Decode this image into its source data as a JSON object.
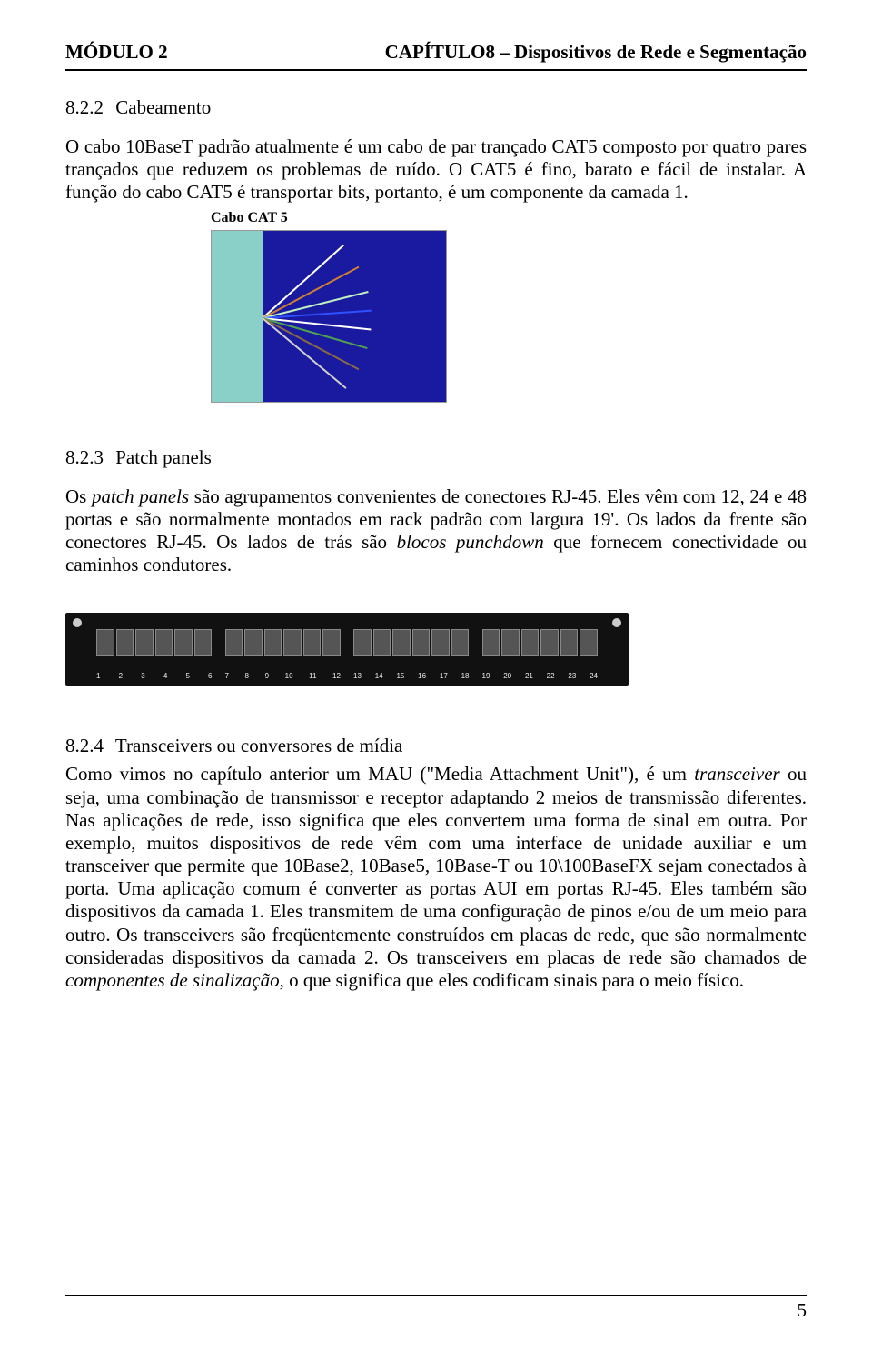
{
  "header": {
    "module": "MÓDULO 2",
    "chapter": "CAPÍTULO8 –  Dispositivos de Rede e Segmentação"
  },
  "sec1": {
    "num": "8.2.2",
    "title": "Cabeamento",
    "p1a": "O cabo 10BaseT padrão atualmente é um cabo de par trançado CAT5 composto por quatro pares trançados que reduzem os problemas de ruído. O CAT5 é fino, barato e fácil de instalar. A função do cabo CAT5 é transportar bits, portanto, é um componente da camada 1.",
    "caption": "Cabo CAT 5"
  },
  "cable_image": {
    "left_bg": "#8ad0c8",
    "right_bg": "#1a1aa0",
    "wires": [
      {
        "color": "#ffffff",
        "angle": -42
      },
      {
        "color": "#d08030",
        "angle": -28
      },
      {
        "color": "#c0f0c0",
        "angle": -14
      },
      {
        "color": "#3050ff",
        "angle": -4
      },
      {
        "color": "#ffffff",
        "angle": 6
      },
      {
        "color": "#50a050",
        "angle": 16
      },
      {
        "color": "#8a6a40",
        "angle": 28
      },
      {
        "color": "#d0d0d0",
        "angle": 40
      }
    ]
  },
  "sec2": {
    "num": "8.2.3",
    "title": "Patch panels",
    "p1_pre": "Os ",
    "p1_em1": "patch panels",
    "p1_mid1": " são agrupamentos convenientes de conectores RJ-45. Eles vêm com 12, 24 e 48 portas e são normalmente montados em rack padrão com largura 19'. Os lados da frente são conectores RJ-45. Os lados de trás são ",
    "p1_em2": "blocos punchdown",
    "p1_mid2": " que fornecem conectividade ou caminhos condutores."
  },
  "patch_image": {
    "groups": 4,
    "ports_per_group": 6,
    "labels": [
      [
        "1",
        "2",
        "3",
        "4",
        "5",
        "6"
      ],
      [
        "7",
        "8",
        "9",
        "10",
        "11",
        "12"
      ],
      [
        "13",
        "14",
        "15",
        "16",
        "17",
        "18"
      ],
      [
        "19",
        "20",
        "21",
        "22",
        "23",
        "24"
      ]
    ]
  },
  "sec3": {
    "num": "8.2.4",
    "title": "Transceivers ou conversores de mídia",
    "p_pre": "Como vimos no capítulo anterior um MAU (\"Media Attachment Unit\"), é um ",
    "p_em1": "transceiver",
    "p_mid1": " ou seja,  uma combinação de transmissor e receptor adaptando 2 meios de transmissão diferentes. Nas aplicações de rede, isso significa que eles convertem uma forma de sinal em outra. Por exemplo, muitos dispositivos de rede vêm com uma interface de unidade auxiliar e um transceiver que permite que 10Base2, 10Base5, 10Base-T ou 10\\100BaseFX sejam conectados à porta. Uma aplicação comum é converter as portas AUI em portas RJ-45. Eles também são dispositivos da camada 1. Eles transmitem de uma configuração de pinos e/ou de um meio para outro. Os transceivers são freqüentemente construídos em placas de rede, que são normalmente consideradas dispositivos da camada 2. Os transceivers em placas de rede são chamados de ",
    "p_em2": "componentes de sinalização",
    "p_mid2": ", o que significa que eles codificam sinais para o meio físico."
  },
  "footer": {
    "page": "5"
  }
}
